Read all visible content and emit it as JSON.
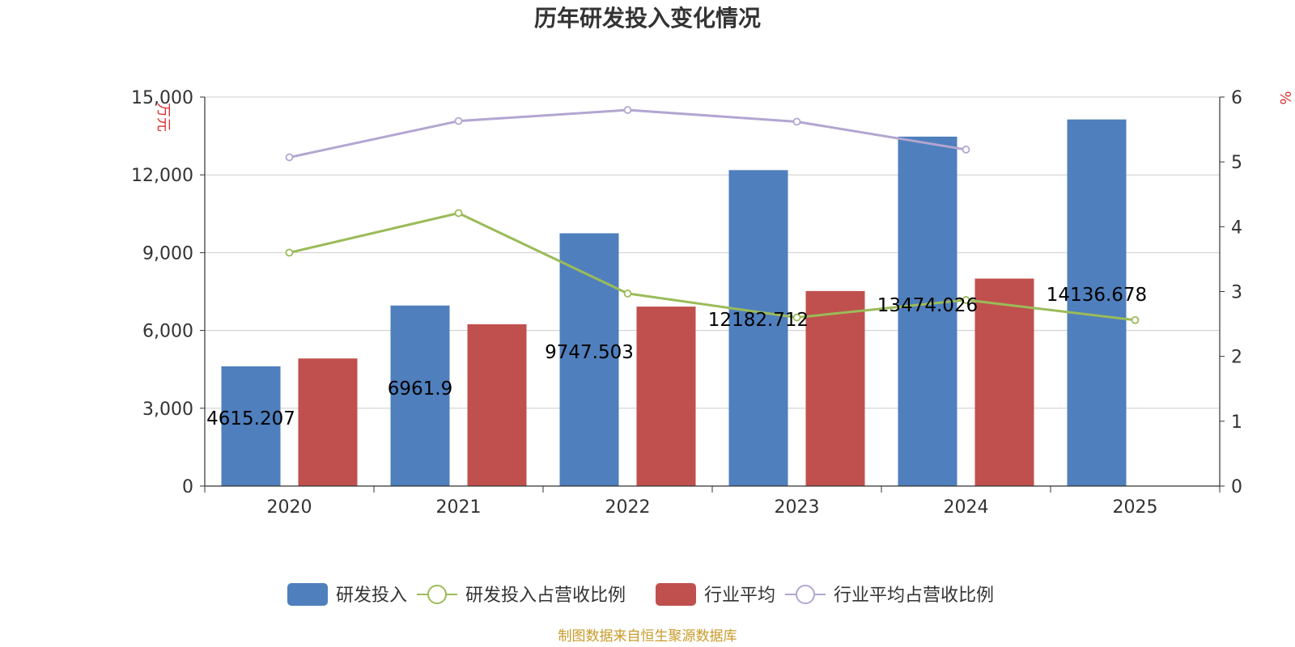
{
  "chart_data": {
    "type": "bar",
    "title": "历年研发投入变化情况",
    "categories": [
      "2020",
      "2021",
      "2022",
      "2023",
      "2024",
      "2025"
    ],
    "y_left": {
      "unit": "万元",
      "ticks": [
        "0",
        "3,000",
        "6,000",
        "9,000",
        "12,000",
        "15,000"
      ],
      "range": [
        0,
        15000
      ]
    },
    "y_right": {
      "unit": "%",
      "ticks": [
        "0",
        "1",
        "2",
        "3",
        "4",
        "5",
        "6"
      ],
      "range": [
        0,
        6
      ]
    },
    "series": [
      {
        "name": "研发投入",
        "type": "bar",
        "axis": "left",
        "color": "#4f7fbd",
        "values": [
          4615.207,
          6961.9,
          9747.503,
          12182.712,
          13474.026,
          14136.678
        ],
        "labels": [
          "4615.207",
          "6961.9",
          "9747.503",
          "12182.712",
          "13474.026",
          "14136.678"
        ]
      },
      {
        "name": "研发投入占营收比例",
        "type": "line",
        "axis": "right",
        "color": "#9bbb59",
        "values": [
          3.6,
          4.21,
          2.97,
          2.6,
          2.87,
          2.56
        ]
      },
      {
        "name": "行业平均",
        "type": "bar",
        "axis": "left",
        "color": "#c0504d",
        "values": [
          4920,
          6240,
          6920,
          7520,
          8000,
          null
        ]
      },
      {
        "name": "行业平均占营收比例",
        "type": "line",
        "axis": "right",
        "color": "#b3a6d0",
        "values": [
          5.07,
          5.63,
          5.8,
          5.62,
          5.19,
          null
        ]
      }
    ],
    "grid": true,
    "legend_position": "bottom"
  },
  "footer": {
    "source": "制图数据来自恒生聚源数据库"
  }
}
